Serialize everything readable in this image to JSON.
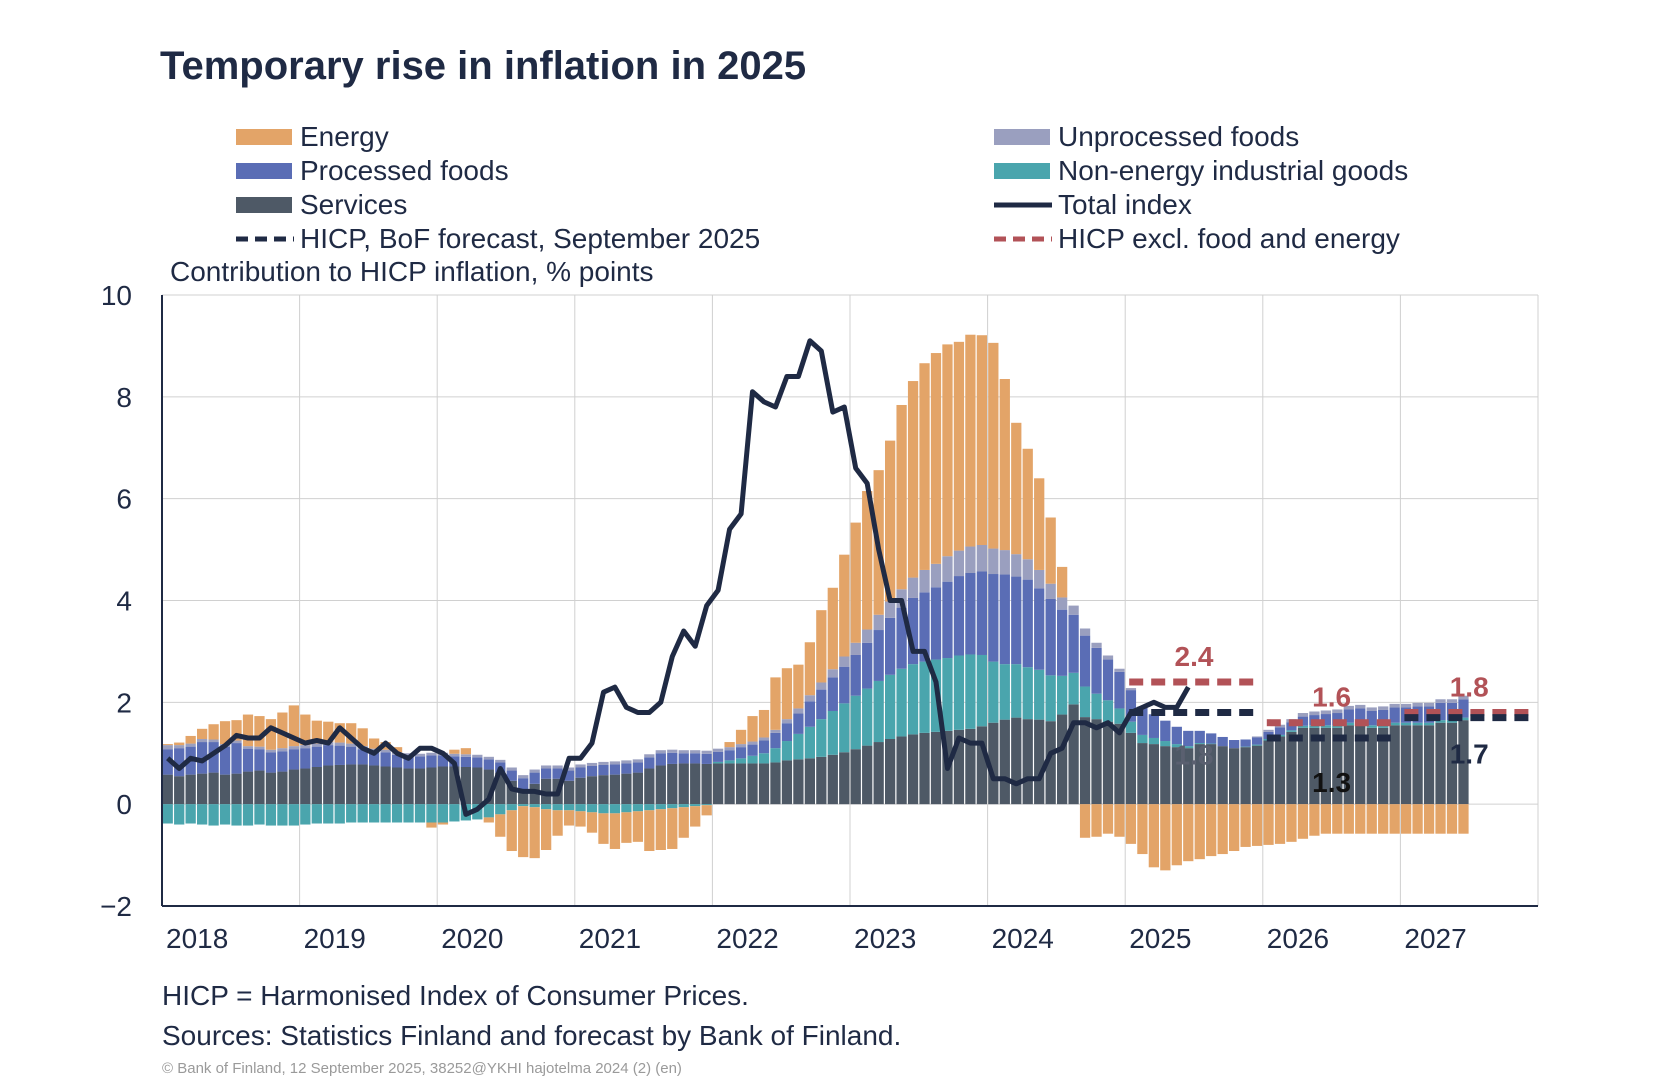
{
  "title": "Temporary rise in inflation in 2025",
  "legend": [
    {
      "label": "Energy",
      "kind": "box",
      "color": "#e3a468"
    },
    {
      "label": "Unprocessed foods",
      "kind": "box",
      "color": "#9a9fbf"
    },
    {
      "label": "Processed foods",
      "kind": "box",
      "color": "#5a6db5"
    },
    {
      "label": "Non-energy industrial goods",
      "kind": "box",
      "color": "#4aa5ad"
    },
    {
      "label": "Services",
      "kind": "box",
      "color": "#4e5966"
    },
    {
      "label": "Total index",
      "kind": "line",
      "color": "#1f2a44"
    },
    {
      "label": "HICP, BoF forecast, September 2025",
      "kind": "dash",
      "color": "#1f2a44"
    },
    {
      "label": "HICP excl. food and energy",
      "kind": "dash",
      "color": "#b25257"
    }
  ],
  "y_unit": "Contribution to HICP inflation, % points",
  "note1": "HICP = Harmonised Index of Consumer Prices.",
  "note2": "Sources: Statistics Finland and forecast by Bank of Finland.",
  "copyright": "© Bank of Finland, 12 September 2025, 38252@YKHI hajotelma 2024 (2) (en)",
  "chart_data": {
    "type": "bar",
    "stacked": true,
    "ylim": [
      -2,
      10
    ],
    "yticks": [
      -2,
      0,
      2,
      4,
      6,
      8,
      10
    ],
    "ytick_labels": [
      "−2",
      "0",
      "2",
      "4",
      "6",
      "8",
      "10"
    ],
    "x_start": 2018,
    "x_end": 2028,
    "xtick_labels": [
      "2018",
      "2019",
      "2020",
      "2021",
      "2022",
      "2023",
      "2024",
      "2025",
      "2026",
      "2027"
    ],
    "grid": true,
    "frequency": "monthly",
    "first_period": "2018-01",
    "colors": {
      "energy": "#e3a468",
      "unprocessed": "#9a9fbf",
      "processed": "#5a6db5",
      "neig": "#4aa5ad",
      "services": "#4e5966",
      "total": "#1f2a44",
      "forecast": "#1f2a44",
      "core": "#b25257"
    },
    "series": [
      {
        "name": "Services",
        "key": "services",
        "values": [
          0.58,
          0.55,
          0.58,
          0.6,
          0.62,
          0.58,
          0.6,
          0.64,
          0.66,
          0.62,
          0.64,
          0.68,
          0.7,
          0.73,
          0.76,
          0.77,
          0.78,
          0.78,
          0.76,
          0.74,
          0.72,
          0.7,
          0.7,
          0.72,
          0.74,
          0.74,
          0.73,
          0.72,
          0.68,
          0.62,
          0.46,
          0.26,
          0.4,
          0.5,
          0.5,
          0.46,
          0.52,
          0.55,
          0.57,
          0.58,
          0.6,
          0.62,
          0.7,
          0.76,
          0.79,
          0.8,
          0.8,
          0.79,
          0.8,
          0.8,
          0.8,
          0.8,
          0.8,
          0.82,
          0.86,
          0.88,
          0.9,
          0.93,
          0.97,
          1.02,
          1.08,
          1.15,
          1.22,
          1.28,
          1.33,
          1.37,
          1.4,
          1.42,
          1.44,
          1.46,
          1.48,
          1.53,
          1.6,
          1.66,
          1.7,
          1.67,
          1.66,
          1.63,
          1.76,
          1.96,
          1.71,
          1.67,
          1.62,
          1.58,
          1.4,
          1.2,
          1.18,
          1.14,
          1.12,
          1.1,
          1.18,
          1.18,
          1.14,
          1.1,
          1.12,
          1.15,
          1.25,
          1.33,
          1.42,
          1.5,
          1.5,
          1.5,
          1.5,
          1.55,
          1.55,
          1.5,
          1.5,
          1.55,
          1.55,
          1.55,
          1.55,
          1.6,
          1.6,
          1.65
        ]
      },
      {
        "name": "Non-energy industrial goods",
        "key": "neig",
        "values": [
          -0.38,
          -0.4,
          -0.38,
          -0.4,
          -0.42,
          -0.4,
          -0.42,
          -0.42,
          -0.4,
          -0.42,
          -0.42,
          -0.42,
          -0.4,
          -0.38,
          -0.38,
          -0.38,
          -0.36,
          -0.36,
          -0.36,
          -0.36,
          -0.36,
          -0.36,
          -0.36,
          -0.36,
          -0.36,
          -0.34,
          -0.32,
          -0.3,
          -0.26,
          -0.2,
          -0.12,
          -0.04,
          -0.06,
          -0.1,
          -0.12,
          -0.12,
          -0.14,
          -0.16,
          -0.18,
          -0.18,
          -0.16,
          -0.14,
          -0.12,
          -0.1,
          -0.08,
          -0.06,
          -0.04,
          -0.02,
          0.03,
          0.06,
          0.1,
          0.15,
          0.2,
          0.28,
          0.38,
          0.5,
          0.62,
          0.74,
          0.86,
          0.96,
          1.05,
          1.12,
          1.2,
          1.26,
          1.33,
          1.38,
          1.4,
          1.42,
          1.43,
          1.46,
          1.46,
          1.4,
          1.2,
          1.09,
          1.05,
          1.02,
          0.98,
          0.9,
          0.76,
          0.62,
          0.6,
          0.5,
          0.42,
          0.3,
          0.22,
          0.16,
          0.12,
          0.1,
          0.06,
          0.04,
          0.02,
          0.01,
          0.0,
          0.0,
          0.01,
          0.02,
          0.03,
          0.03,
          0.03,
          0.04,
          0.05,
          0.05,
          0.05,
          0.05,
          0.05,
          0.05,
          0.05,
          0.05,
          0.05,
          0.05,
          0.05,
          0.05,
          0.05,
          0.05
        ]
      },
      {
        "name": "Processed foods",
        "key": "processed",
        "values": [
          0.5,
          0.55,
          0.55,
          0.62,
          0.6,
          0.55,
          0.6,
          0.45,
          0.42,
          0.4,
          0.4,
          0.4,
          0.4,
          0.4,
          0.4,
          0.38,
          0.35,
          0.3,
          0.28,
          0.28,
          0.25,
          0.25,
          0.24,
          0.24,
          0.22,
          0.2,
          0.2,
          0.2,
          0.2,
          0.2,
          0.2,
          0.25,
          0.22,
          0.2,
          0.2,
          0.2,
          0.2,
          0.2,
          0.2,
          0.2,
          0.2,
          0.2,
          0.22,
          0.24,
          0.22,
          0.2,
          0.2,
          0.2,
          0.2,
          0.2,
          0.22,
          0.22,
          0.25,
          0.3,
          0.35,
          0.4,
          0.5,
          0.58,
          0.66,
          0.72,
          0.8,
          0.9,
          1.0,
          1.12,
          1.2,
          1.3,
          1.36,
          1.42,
          1.5,
          1.56,
          1.6,
          1.64,
          1.72,
          1.76,
          1.72,
          1.72,
          1.6,
          1.5,
          1.3,
          1.14,
          1.0,
          0.9,
          0.8,
          0.72,
          0.62,
          0.54,
          0.46,
          0.4,
          0.34,
          0.3,
          0.24,
          0.2,
          0.18,
          0.16,
          0.14,
          0.14,
          0.14,
          0.15,
          0.16,
          0.18,
          0.2,
          0.22,
          0.24,
          0.26,
          0.28,
          0.28,
          0.3,
          0.3,
          0.3,
          0.32,
          0.32,
          0.34,
          0.34,
          0.36
        ]
      },
      {
        "name": "Unprocessed foods",
        "key": "unprocessed",
        "values": [
          0.08,
          0.06,
          0.06,
          0.06,
          0.05,
          0.05,
          0.05,
          0.05,
          0.05,
          0.05,
          0.06,
          0.06,
          0.06,
          0.06,
          0.06,
          0.06,
          0.06,
          0.06,
          0.05,
          0.05,
          0.05,
          0.05,
          0.05,
          0.05,
          0.05,
          0.05,
          0.05,
          0.05,
          0.05,
          0.05,
          0.06,
          0.06,
          0.06,
          0.06,
          0.06,
          0.06,
          0.06,
          0.06,
          0.06,
          0.06,
          0.06,
          0.06,
          0.06,
          0.06,
          0.06,
          0.06,
          0.06,
          0.06,
          0.06,
          0.06,
          0.06,
          0.06,
          0.06,
          0.06,
          0.08,
          0.1,
          0.12,
          0.14,
          0.16,
          0.2,
          0.24,
          0.26,
          0.3,
          0.32,
          0.36,
          0.4,
          0.44,
          0.46,
          0.5,
          0.5,
          0.52,
          0.52,
          0.5,
          0.48,
          0.44,
          0.4,
          0.36,
          0.3,
          0.24,
          0.18,
          0.14,
          0.1,
          0.08,
          0.06,
          0.04,
          0.02,
          0.01,
          0.0,
          0.0,
          0.0,
          0.0,
          0.0,
          0.0,
          0.0,
          0.0,
          0.02,
          0.04,
          0.05,
          0.06,
          0.07,
          0.07,
          0.07,
          0.07,
          0.07,
          0.07,
          0.07,
          0.07,
          0.07,
          0.07,
          0.07,
          0.07,
          0.07,
          0.07,
          0.07
        ]
      },
      {
        "name": "Energy",
        "key": "energy",
        "values": [
          0.02,
          0.05,
          0.15,
          0.2,
          0.3,
          0.45,
          0.4,
          0.62,
          0.6,
          0.6,
          0.7,
          0.8,
          0.6,
          0.45,
          0.4,
          0.38,
          0.4,
          0.35,
          0.2,
          0.15,
          0.1,
          0.0,
          0.0,
          -0.1,
          -0.04,
          0.08,
          0.12,
          0.0,
          -0.1,
          -0.44,
          -0.8,
          -1.0,
          -1.0,
          -0.8,
          -0.5,
          -0.3,
          -0.3,
          -0.4,
          -0.6,
          -0.7,
          -0.6,
          -0.6,
          -0.8,
          -0.8,
          -0.8,
          -0.6,
          -0.4,
          -0.2,
          0.0,
          0.1,
          0.28,
          0.5,
          0.54,
          1.03,
          1.0,
          0.86,
          1.04,
          1.42,
          1.6,
          2.0,
          2.36,
          2.72,
          2.84,
          3.16,
          3.62,
          3.86,
          4.06,
          4.14,
          4.16,
          4.1,
          4.16,
          4.12,
          4.04,
          3.36,
          2.58,
          2.17,
          1.8,
          1.3,
          0.6,
          0.0,
          -0.66,
          -0.64,
          -0.58,
          -0.64,
          -0.78,
          -0.98,
          -1.24,
          -1.3,
          -1.2,
          -1.12,
          -1.08,
          -1.02,
          -0.98,
          -0.92,
          -0.84,
          -0.82,
          -0.8,
          -0.78,
          -0.74,
          -0.68,
          -0.62,
          -0.58,
          -0.58,
          -0.58,
          -0.58,
          -0.58,
          -0.58,
          -0.58,
          -0.58,
          -0.58,
          -0.58,
          -0.58,
          -0.58,
          -0.58
        ]
      },
      {
        "name": "Total index",
        "key": "total",
        "kind": "line",
        "values": [
          0.9,
          0.7,
          0.9,
          0.85,
          1.0,
          1.15,
          1.35,
          1.3,
          1.3,
          1.5,
          1.4,
          1.3,
          1.2,
          1.25,
          1.2,
          1.5,
          1.3,
          1.1,
          1.0,
          1.2,
          1.0,
          0.9,
          1.1,
          1.1,
          1.0,
          0.8,
          -0.2,
          -0.1,
          0.1,
          0.7,
          0.3,
          0.25,
          0.25,
          0.2,
          0.2,
          0.9,
          0.9,
          1.2,
          2.2,
          2.3,
          1.9,
          1.8,
          1.8,
          2.0,
          2.9,
          3.4,
          3.1,
          3.9,
          4.2,
          5.4,
          5.7,
          8.1,
          7.9,
          7.8,
          8.4,
          8.4,
          9.1,
          8.9,
          7.7,
          7.8,
          6.6,
          6.3,
          5.0,
          4.0,
          4.0,
          3.0,
          3.0,
          2.4,
          0.7,
          1.3,
          1.2,
          1.2,
          0.5,
          0.5,
          0.4,
          0.5,
          0.5,
          1.0,
          1.1,
          1.6,
          1.6,
          1.5,
          1.6,
          1.4,
          1.8,
          1.9,
          2.0,
          1.9,
          1.9,
          2.3
        ]
      }
    ],
    "forecast_hicp": [
      {
        "year": 2025,
        "value": 1.8,
        "label": "1.8"
      },
      {
        "year": 2026,
        "value": 1.3,
        "label": "1.3"
      },
      {
        "year": 2027,
        "value": 1.7,
        "label": "1.7"
      }
    ],
    "forecast_core": [
      {
        "year": 2025,
        "value": 2.4,
        "label": "2.4"
      },
      {
        "year": 2026,
        "value": 1.6,
        "label": "1.6"
      },
      {
        "year": 2027,
        "value": 1.8,
        "label": "1.8"
      }
    ]
  }
}
